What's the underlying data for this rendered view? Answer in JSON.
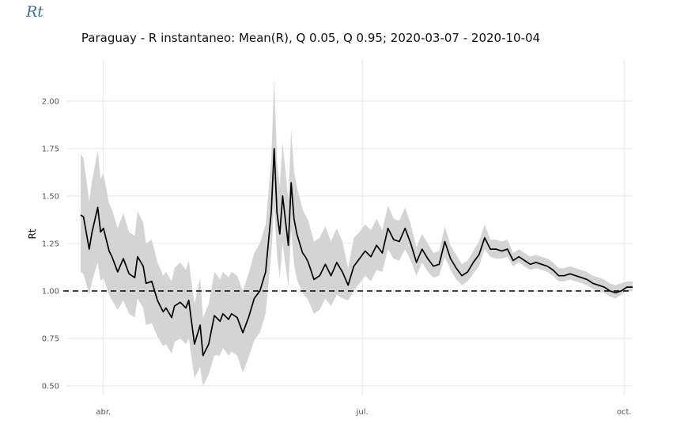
{
  "app": {
    "title": "Rt"
  },
  "chart_data": {
    "type": "line",
    "title": "Paraguay - R instantaneo: Mean(R), Q 0.05, Q 0.95;  2020-03-07 - 2020-10-04",
    "xlabel": "",
    "ylabel": "Rt",
    "x_range": [
      "2020-03-19",
      "2020-10-04"
    ],
    "ylim": [
      0.45,
      2.22
    ],
    "y_ticks": [
      0.5,
      0.75,
      1.0,
      1.25,
      1.5,
      1.75,
      2.0
    ],
    "y_tick_labels": [
      "0.50",
      "0.75",
      "1.00",
      "1.25",
      "1.50",
      "1.75",
      "2.00"
    ],
    "x_ticks": [
      {
        "date": "2020-04-01",
        "label": "abr."
      },
      {
        "date": "2020-07-01",
        "label": "jul."
      },
      {
        "date": "2020-10-01",
        "label": "oct."
      }
    ],
    "grid": true,
    "reference_line": {
      "y": 1.0,
      "style": "dashed"
    },
    "colors": {
      "mean": "#000000",
      "band": "#d4d4d4",
      "grid": "#e6e6e6",
      "reference": "#000000"
    },
    "series": [
      {
        "dates": [
          "2020-03-24",
          "2020-03-25",
          "2020-03-27",
          "2020-03-28",
          "2020-03-30",
          "2020-03-31",
          "2020-04-01",
          "2020-04-03",
          "2020-04-04",
          "2020-04-06",
          "2020-04-08",
          "2020-04-10",
          "2020-04-12",
          "2020-04-13",
          "2020-04-15",
          "2020-04-16",
          "2020-04-18",
          "2020-04-20",
          "2020-04-22",
          "2020-04-23",
          "2020-04-25",
          "2020-04-26",
          "2020-04-28",
          "2020-04-30",
          "2020-05-01",
          "2020-05-03",
          "2020-05-05",
          "2020-05-06",
          "2020-05-08",
          "2020-05-10",
          "2020-05-12",
          "2020-05-13",
          "2020-05-15",
          "2020-05-16",
          "2020-05-18",
          "2020-05-20",
          "2020-05-22",
          "2020-05-24",
          "2020-05-26",
          "2020-05-28",
          "2020-05-30",
          "2020-05-31",
          "2020-06-01",
          "2020-06-02",
          "2020-06-03",
          "2020-06-05",
          "2020-06-06",
          "2020-06-07",
          "2020-06-08",
          "2020-06-10",
          "2020-06-11",
          "2020-06-12",
          "2020-06-14",
          "2020-06-16",
          "2020-06-18",
          "2020-06-20",
          "2020-06-22",
          "2020-06-24",
          "2020-06-26",
          "2020-06-28",
          "2020-06-30",
          "2020-07-02",
          "2020-07-04",
          "2020-07-06",
          "2020-07-08",
          "2020-07-10",
          "2020-07-12",
          "2020-07-14",
          "2020-07-16",
          "2020-07-18",
          "2020-07-20",
          "2020-07-22",
          "2020-07-24",
          "2020-07-26",
          "2020-07-28",
          "2020-07-30",
          "2020-08-01",
          "2020-08-03",
          "2020-08-05",
          "2020-08-07",
          "2020-08-09",
          "2020-08-11",
          "2020-08-13",
          "2020-08-15",
          "2020-08-17",
          "2020-08-19",
          "2020-08-21",
          "2020-08-23",
          "2020-08-25",
          "2020-08-27",
          "2020-08-29",
          "2020-08-31",
          "2020-09-02",
          "2020-09-04",
          "2020-09-06",
          "2020-09-08",
          "2020-09-10",
          "2020-09-12",
          "2020-09-14",
          "2020-09-16",
          "2020-09-18",
          "2020-09-20",
          "2020-09-22",
          "2020-09-24",
          "2020-09-26",
          "2020-09-28",
          "2020-09-30",
          "2020-10-02",
          "2020-10-04"
        ],
        "mean": [
          1.4,
          1.39,
          1.22,
          1.31,
          1.44,
          1.31,
          1.33,
          1.21,
          1.18,
          1.1,
          1.17,
          1.09,
          1.07,
          1.18,
          1.13,
          1.04,
          1.05,
          0.95,
          0.89,
          0.91,
          0.86,
          0.92,
          0.94,
          0.91,
          0.95,
          0.72,
          0.82,
          0.66,
          0.72,
          0.87,
          0.84,
          0.88,
          0.85,
          0.88,
          0.86,
          0.78,
          0.86,
          0.96,
          1.0,
          1.1,
          1.42,
          1.75,
          1.41,
          1.3,
          1.5,
          1.24,
          1.57,
          1.38,
          1.3,
          1.2,
          1.18,
          1.15,
          1.06,
          1.08,
          1.14,
          1.08,
          1.15,
          1.1,
          1.03,
          1.13,
          1.17,
          1.21,
          1.18,
          1.24,
          1.2,
          1.33,
          1.27,
          1.26,
          1.33,
          1.25,
          1.15,
          1.22,
          1.17,
          1.13,
          1.14,
          1.26,
          1.17,
          1.12,
          1.08,
          1.1,
          1.15,
          1.19,
          1.28,
          1.22,
          1.22,
          1.21,
          1.22,
          1.16,
          1.18,
          1.16,
          1.14,
          1.15,
          1.14,
          1.13,
          1.11,
          1.08,
          1.08,
          1.09,
          1.08,
          1.07,
          1.06,
          1.04,
          1.03,
          1.02,
          1.0,
          0.99,
          1.0,
          1.02,
          1.02
        ],
        "q05": [
          1.1,
          1.09,
          0.98,
          1.05,
          1.15,
          1.05,
          1.07,
          0.98,
          0.95,
          0.9,
          0.95,
          0.88,
          0.86,
          0.96,
          0.91,
          0.82,
          0.83,
          0.76,
          0.71,
          0.72,
          0.67,
          0.73,
          0.75,
          0.72,
          0.75,
          0.54,
          0.6,
          0.5,
          0.56,
          0.66,
          0.66,
          0.7,
          0.66,
          0.68,
          0.66,
          0.57,
          0.65,
          0.74,
          0.78,
          0.88,
          1.2,
          1.45,
          1.18,
          1.07,
          1.25,
          1.02,
          1.32,
          1.14,
          1.06,
          0.99,
          0.97,
          0.95,
          0.88,
          0.9,
          0.96,
          0.92,
          0.98,
          0.96,
          0.95,
          1.0,
          1.04,
          1.08,
          1.05,
          1.11,
          1.1,
          1.22,
          1.17,
          1.16,
          1.22,
          1.16,
          1.08,
          1.15,
          1.1,
          1.07,
          1.08,
          1.18,
          1.11,
          1.06,
          1.03,
          1.05,
          1.09,
          1.13,
          1.22,
          1.18,
          1.17,
          1.17,
          1.18,
          1.13,
          1.15,
          1.13,
          1.11,
          1.12,
          1.11,
          1.1,
          1.08,
          1.05,
          1.05,
          1.06,
          1.05,
          1.04,
          1.03,
          1.01,
          1.0,
          0.99,
          0.97,
          0.96,
          0.98,
          1.0,
          1.0
        ],
        "q95": [
          1.72,
          1.7,
          1.47,
          1.58,
          1.74,
          1.59,
          1.62,
          1.46,
          1.43,
          1.33,
          1.41,
          1.31,
          1.29,
          1.42,
          1.36,
          1.25,
          1.27,
          1.15,
          1.08,
          1.1,
          1.05,
          1.12,
          1.15,
          1.11,
          1.16,
          0.93,
          1.07,
          0.86,
          0.93,
          1.1,
          1.06,
          1.1,
          1.07,
          1.1,
          1.08,
          1.0,
          1.09,
          1.2,
          1.25,
          1.35,
          1.7,
          2.12,
          1.68,
          1.55,
          1.78,
          1.48,
          1.85,
          1.63,
          1.55,
          1.43,
          1.4,
          1.37,
          1.26,
          1.28,
          1.34,
          1.26,
          1.33,
          1.26,
          1.12,
          1.28,
          1.31,
          1.35,
          1.32,
          1.38,
          1.32,
          1.45,
          1.38,
          1.37,
          1.44,
          1.35,
          1.23,
          1.3,
          1.25,
          1.2,
          1.21,
          1.34,
          1.24,
          1.19,
          1.14,
          1.16,
          1.21,
          1.26,
          1.35,
          1.27,
          1.27,
          1.26,
          1.27,
          1.2,
          1.22,
          1.2,
          1.18,
          1.19,
          1.18,
          1.17,
          1.15,
          1.12,
          1.12,
          1.13,
          1.12,
          1.11,
          1.1,
          1.08,
          1.07,
          1.06,
          1.04,
          1.03,
          1.04,
          1.05,
          1.05
        ]
      }
    ]
  }
}
